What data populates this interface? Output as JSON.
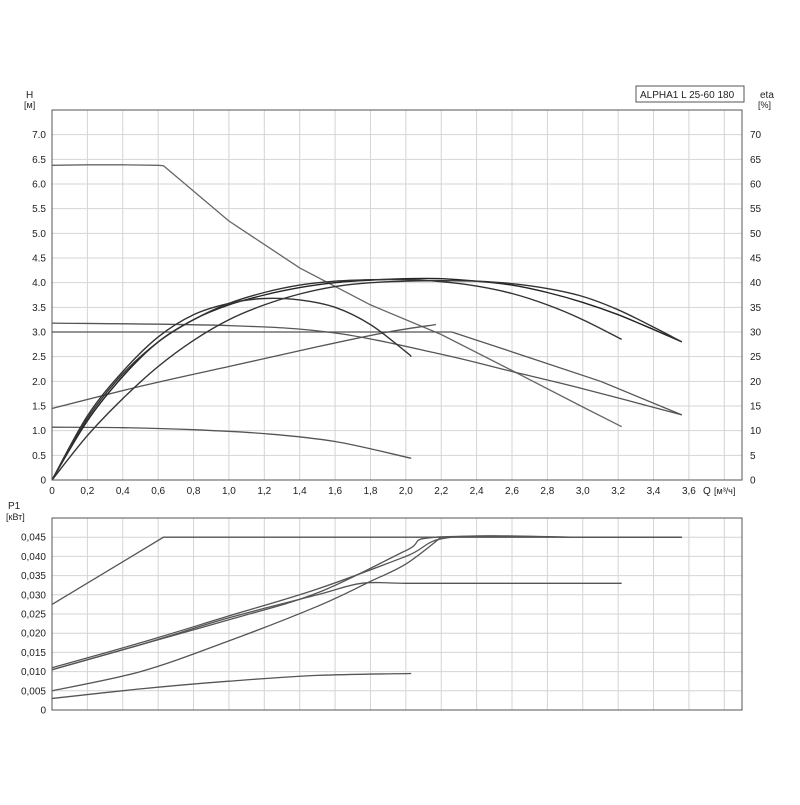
{
  "chart_data": [
    {
      "type": "line",
      "name_box": "ALPHA1 L 25-60 180",
      "ylabel_left": "H",
      "ylabel_left_unit": "[м]",
      "ylabel_right": "eta",
      "ylabel_right_unit": "[%]",
      "xlabel": "Q",
      "xlabel_unit": "[м³/ч]",
      "xlim": [
        0,
        3.9
      ],
      "ylim": [
        0,
        7.5
      ],
      "ylim_right": [
        0,
        75
      ],
      "x_ticks": [
        "0",
        "0,2",
        "0,4",
        "0,6",
        "0,8",
        "1,0",
        "1,2",
        "1,4",
        "1,6",
        "1,8",
        "2,0",
        "2,2",
        "2,4",
        "2,6",
        "2,8",
        "3,0",
        "3,2",
        "3,4",
        "3,6"
      ],
      "y_ticks": [
        "0",
        "0.5",
        "1.0",
        "1.5",
        "2.0",
        "2.5",
        "3.0",
        "3.5",
        "4.0",
        "4.5",
        "5.0",
        "5.5",
        "6.0",
        "6.5",
        "7.0"
      ],
      "y_ticks_right": [
        "0",
        "5",
        "10",
        "15",
        "20",
        "25",
        "30",
        "35",
        "40",
        "45",
        "50",
        "55",
        "60",
        "65",
        "70"
      ],
      "grid": true,
      "series": [
        {
          "axis": "left",
          "color": "#666666",
          "x": [
            0,
            0.2,
            0.4,
            0.6,
            0.63,
            1.0,
            1.4,
            1.8,
            2.2,
            2.6,
            3.0,
            3.22
          ],
          "y": [
            6.38,
            6.39,
            6.39,
            6.38,
            6.37,
            5.25,
            4.3,
            3.55,
            2.95,
            2.22,
            1.48,
            1.08
          ]
        },
        {
          "axis": "left",
          "color": "#555555",
          "x": [
            0,
            1.0,
            2.0,
            2.26,
            2.7,
            3.1,
            3.56
          ],
          "y": [
            3.0,
            3.0,
            3.0,
            3.0,
            2.48,
            2.0,
            1.32
          ]
        },
        {
          "axis": "left",
          "color": "#555555",
          "x": [
            0,
            1.0,
            1.6,
            2.2,
            2.6,
            3.0,
            3.56
          ],
          "y": [
            3.18,
            3.13,
            2.98,
            2.55,
            2.2,
            1.85,
            1.32
          ]
        },
        {
          "axis": "left",
          "color": "#555555",
          "x": [
            0,
            0.5,
            1.0,
            1.5,
            1.9,
            2.17
          ],
          "y": [
            1.45,
            1.9,
            2.3,
            2.7,
            3.0,
            3.15
          ]
        },
        {
          "axis": "left",
          "color": "#555555",
          "x": [
            0,
            0.4,
            0.8,
            1.2,
            1.6,
            2.03
          ],
          "y": [
            1.07,
            1.06,
            1.02,
            0.94,
            0.78,
            0.44
          ]
        },
        {
          "axis": "right",
          "color": "#222222",
          "x": [
            0,
            0.2,
            0.4,
            0.6,
            0.8,
            1.0,
            1.2,
            1.4,
            1.6,
            1.8,
            2.0,
            2.2,
            2.4,
            2.6,
            2.8,
            3.0,
            3.2,
            3.4,
            3.56
          ],
          "y": [
            0,
            12,
            21,
            28,
            32.5,
            35.5,
            37.5,
            39,
            40,
            40.5,
            40.8,
            40.8,
            40.3,
            39.5,
            38,
            36,
            33.5,
            30.5,
            28
          ]
        },
        {
          "axis": "right",
          "color": "#333333",
          "x": [
            0,
            0.2,
            0.4,
            0.6,
            0.8,
            1.0,
            1.2,
            1.4,
            1.6,
            1.8,
            2.0,
            2.2,
            2.4,
            2.6,
            2.8,
            3.0,
            3.22
          ],
          "y": [
            0,
            12.5,
            21.5,
            28,
            32.5,
            35.8,
            38,
            39.5,
            40.3,
            40.6,
            40.6,
            40.2,
            39.3,
            37.8,
            35.5,
            32.5,
            28.5
          ]
        },
        {
          "axis": "right",
          "color": "#333333",
          "x": [
            0,
            0.2,
            0.4,
            0.6,
            0.8,
            1.0,
            1.2,
            1.4,
            1.6,
            1.8,
            2.0,
            2.03
          ],
          "y": [
            0,
            13,
            22,
            29,
            33.5,
            35.8,
            36.8,
            36.5,
            35,
            31.5,
            26,
            25
          ]
        },
        {
          "axis": "right",
          "color": "#333333",
          "x": [
            0,
            0.2,
            0.4,
            0.6,
            0.8,
            1.0,
            1.2,
            1.4,
            1.6,
            1.8,
            2.0,
            2.2,
            2.4,
            2.6,
            2.8,
            3.0,
            3.2,
            3.4,
            3.56
          ],
          "y": [
            0,
            9,
            16.5,
            23,
            28.3,
            32.5,
            35.5,
            37.7,
            39.2,
            40,
            40.3,
            40.4,
            40.3,
            39.8,
            38.8,
            37.2,
            34.5,
            31,
            28
          ]
        }
      ]
    },
    {
      "type": "line",
      "ylabel": "P1",
      "ylabel_unit": "[кВт]",
      "xlim": [
        0,
        3.9
      ],
      "ylim": [
        0,
        0.05
      ],
      "y_ticks": [
        "0",
        "0,005",
        "0,010",
        "0,015",
        "0,020",
        "0,025",
        "0,030",
        "0,035",
        "0,040",
        "0,045"
      ],
      "grid": true,
      "series": [
        {
          "color": "#555555",
          "x": [
            0,
            0.63,
            1.0,
            2.0,
            3.0,
            3.56
          ],
          "y": [
            0.0275,
            0.045,
            0.045,
            0.045,
            0.045,
            0.045
          ]
        },
        {
          "color": "#555555",
          "x": [
            0,
            0.5,
            1.0,
            1.5,
            2.0,
            2.26,
            3.0,
            3.56
          ],
          "y": [
            0.011,
            0.0175,
            0.0245,
            0.0315,
            0.04,
            0.045,
            0.045,
            0.045
          ]
        },
        {
          "color": "#555555",
          "x": [
            0,
            0.5,
            1.0,
            1.5,
            2.0,
            2.17,
            3.0,
            3.56
          ],
          "y": [
            0.0105,
            0.017,
            0.0235,
            0.0305,
            0.0415,
            0.045,
            0.045,
            0.045
          ]
        },
        {
          "color": "#555555",
          "x": [
            0,
            0.5,
            1.0,
            1.5,
            1.75,
            2.0,
            2.5,
            3.0,
            3.22
          ],
          "y": [
            0.0105,
            0.017,
            0.024,
            0.03,
            0.033,
            0.033,
            0.033,
            0.033,
            0.033
          ]
        },
        {
          "color": "#555555",
          "x": [
            0,
            0.5,
            1.0,
            1.5,
            1.8,
            2.0,
            2.2
          ],
          "y": [
            0.005,
            0.01,
            0.018,
            0.027,
            0.0335,
            0.038,
            0.045
          ]
        },
        {
          "color": "#555555",
          "x": [
            0,
            0.5,
            1.0,
            1.5,
            2.03
          ],
          "y": [
            0.003,
            0.0055,
            0.0075,
            0.009,
            0.0095
          ]
        }
      ]
    }
  ]
}
